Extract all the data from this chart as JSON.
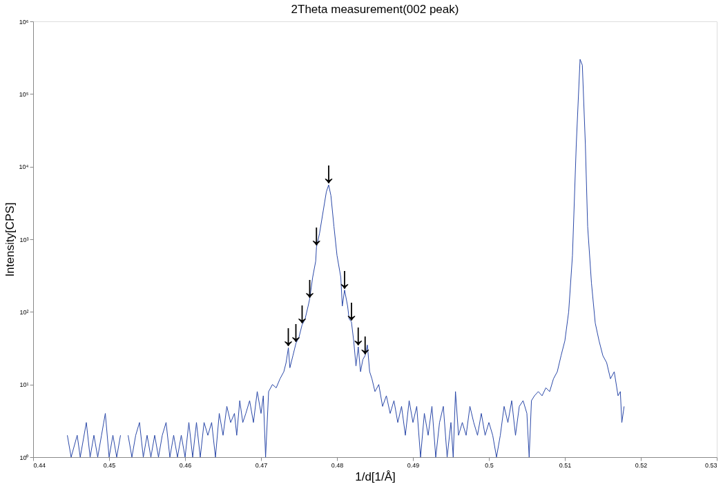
{
  "chart_data": {
    "type": "line",
    "title": "2Theta measurement(002 peak)",
    "xlabel": "1/d[1/Å]",
    "ylabel": "Intensity[CPS]",
    "x": [
      0.4445,
      0.445,
      0.4458,
      0.4462,
      0.447,
      0.4475,
      0.448,
      0.4485,
      0.449,
      0.4495,
      0.45,
      0.4505,
      0.451,
      0.4515,
      0.452,
      0.4525,
      0.453,
      0.4535,
      0.454,
      0.4545,
      0.455,
      0.4555,
      0.456,
      0.4565,
      0.457,
      0.4575,
      0.458,
      0.4585,
      0.459,
      0.4595,
      0.46,
      0.4605,
      0.461,
      0.4615,
      0.462,
      0.4625,
      0.463,
      0.4635,
      0.464,
      0.4645,
      0.465,
      0.4655,
      0.466,
      0.4665,
      0.4668,
      0.4672,
      0.4676,
      0.468,
      0.4685,
      0.469,
      0.4695,
      0.47,
      0.4703,
      0.4706,
      0.471,
      0.4715,
      0.472,
      0.4725,
      0.473,
      0.4733,
      0.4736,
      0.4738,
      0.4742,
      0.4746,
      0.475,
      0.4754,
      0.4758,
      0.4762,
      0.4764,
      0.4768,
      0.4772,
      0.4773,
      0.4777,
      0.4782,
      0.4786,
      0.4789,
      0.4792,
      0.4796,
      0.48,
      0.4805,
      0.4807,
      0.481,
      0.4814,
      0.4816,
      0.4819,
      0.4822,
      0.4825,
      0.4828,
      0.4831,
      0.4834,
      0.4837,
      0.484,
      0.4843,
      0.4846,
      0.485,
      0.4855,
      0.486,
      0.4865,
      0.487,
      0.4875,
      0.488,
      0.4885,
      0.489,
      0.4895,
      0.49,
      0.4905,
      0.491,
      0.4915,
      0.492,
      0.4925,
      0.493,
      0.4935,
      0.494,
      0.4945,
      0.495,
      0.4953,
      0.4956,
      0.496,
      0.4965,
      0.497,
      0.4975,
      0.498,
      0.4985,
      0.499,
      0.4995,
      0.5,
      0.5005,
      0.501,
      0.5015,
      0.502,
      0.5025,
      0.503,
      0.5035,
      0.504,
      0.5045,
      0.505,
      0.5053,
      0.5056,
      0.506,
      0.5065,
      0.507,
      0.5075,
      0.508,
      0.5085,
      0.509,
      0.5095,
      0.51,
      0.5105,
      0.511,
      0.5115,
      0.512,
      0.5123,
      0.5127,
      0.513,
      0.5135,
      0.514,
      0.5145,
      0.515,
      0.5155,
      0.516,
      0.5165,
      0.517,
      0.5173,
      0.5175,
      0.5178
    ],
    "series": [
      {
        "color": "#2a48a8",
        "values": [
          2,
          1,
          2,
          1,
          3,
          1,
          2,
          1,
          2,
          4,
          1,
          2,
          1,
          2,
          null,
          2,
          1,
          2,
          3,
          1,
          2,
          1,
          2,
          1,
          2,
          3,
          1,
          2,
          1,
          2,
          1,
          3,
          1,
          3,
          1,
          3,
          2,
          3,
          1,
          4,
          2,
          5,
          3,
          4,
          2,
          6,
          3,
          4,
          6,
          3,
          8,
          4,
          7,
          1,
          8,
          10,
          9,
          12,
          15,
          20,
          32,
          17,
          25,
          37,
          45,
          66,
          80,
          120,
          150,
          300,
          500,
          780,
          1200,
          2500,
          4500,
          5600,
          4000,
          1500,
          600,
          300,
          120,
          200,
          120,
          80,
          73,
          40,
          18,
          33,
          15,
          22,
          25,
          35,
          15,
          12,
          8,
          10,
          5,
          7,
          4,
          6,
          3,
          5,
          2,
          6,
          3,
          5,
          1,
          4,
          2,
          5,
          1,
          3,
          5,
          1,
          3,
          1,
          8,
          2,
          3,
          2,
          5,
          3,
          2,
          4,
          2,
          3,
          2,
          1,
          2,
          5,
          3,
          6,
          2,
          5,
          6,
          4,
          1,
          6,
          7,
          8,
          7,
          9,
          8,
          12,
          15,
          25,
          40,
          100,
          600,
          20000,
          300000,
          250000,
          20000,
          1500,
          250,
          70,
          40,
          25,
          20,
          12,
          15,
          7,
          8,
          3,
          5
        ]
      }
    ],
    "log": "y",
    "xlim": [
      0.44,
      0.53
    ],
    "xticks": [
      0.44,
      0.45,
      0.46,
      0.47,
      0.48,
      0.49,
      0.5,
      0.51,
      0.52,
      0.53
    ],
    "ylim": [
      1,
      1000000
    ],
    "yticks": [
      {
        "value": 1,
        "label": "10⁰"
      },
      {
        "value": 10,
        "label": "10¹"
      },
      {
        "value": 100,
        "label": "10²"
      },
      {
        "value": 1000,
        "label": "10³"
      },
      {
        "value": 10000,
        "label": "10⁴"
      },
      {
        "value": 100000,
        "label": "10⁵"
      },
      {
        "value": 1000000,
        "label": "10⁶"
      }
    ],
    "grid": false,
    "marker": "none",
    "line_style": "solid",
    "annotations": [
      {
        "text": "↓",
        "x": 0.4789,
        "y": 5600
      },
      {
        "text": "↓",
        "x": 0.4773,
        "y": 780
      },
      {
        "text": "↓",
        "x": 0.4764,
        "y": 150
      },
      {
        "text": "↓",
        "x": 0.4754,
        "y": 66
      },
      {
        "text": "↓",
        "x": 0.4746,
        "y": 37
      },
      {
        "text": "↓",
        "x": 0.4736,
        "y": 32
      },
      {
        "text": "↓",
        "x": 0.481,
        "y": 200
      },
      {
        "text": "↓",
        "x": 0.4819,
        "y": 73
      },
      {
        "text": "↓",
        "x": 0.4828,
        "y": 33
      },
      {
        "text": "↓",
        "x": 0.4837,
        "y": 25
      }
    ]
  }
}
